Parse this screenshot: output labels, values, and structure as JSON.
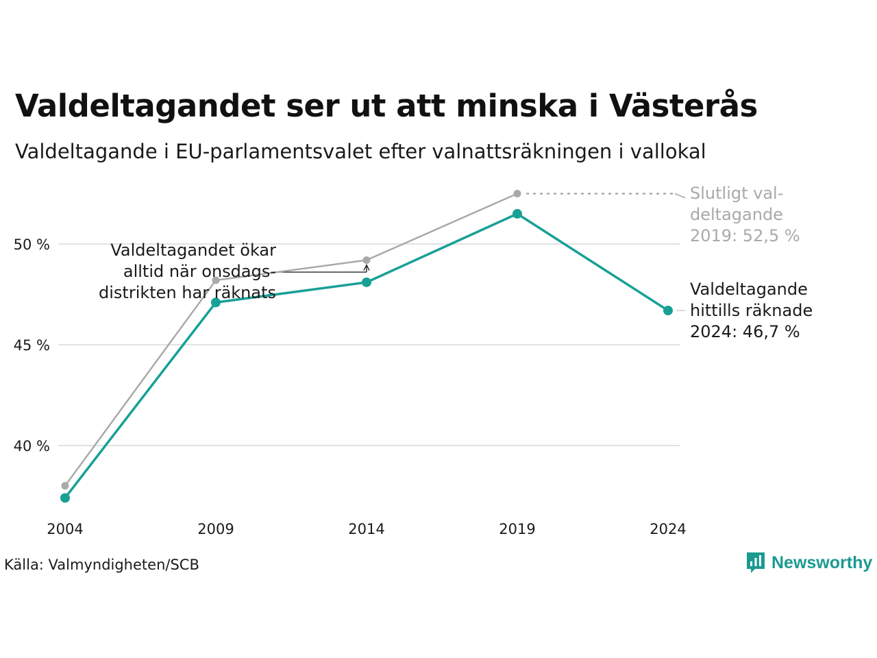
{
  "title": "Valdeltagandet ser ut att minska i Västerås",
  "subtitle": "Valdeltagande i EU-parlamentsvalet efter valnattsräkningen i vallokal",
  "source": "Källa: Valmyndigheten/SCB",
  "brand": "Newsworthy",
  "chart_data": {
    "type": "line",
    "categories": [
      "2004",
      "2009",
      "2014",
      "2019",
      "2024"
    ],
    "ylim": [
      36,
      53.5
    ],
    "yticks": [
      40,
      45,
      50
    ],
    "ytick_labels": [
      "40 %",
      "45 %",
      "50 %"
    ],
    "grid": true,
    "series": [
      {
        "key": "final",
        "values": [
          38.0,
          48.2,
          49.2,
          52.5,
          null
        ],
        "color": "#a9a9a9"
      },
      {
        "key": "election_night",
        "values": [
          37.4,
          47.1,
          48.1,
          51.5,
          46.7
        ],
        "color": "#18a096"
      }
    ],
    "annotations": {
      "final": [
        "Slutligt val-",
        "deltagande",
        "2019: 52,5 %"
      ],
      "current": [
        "Valdeltagande",
        "hittills räknade",
        "2024: 46,7 %"
      ],
      "note": [
        "Valdeltagandet ökar",
        "alltid när onsdags-",
        "distrikten har räknats"
      ]
    }
  }
}
